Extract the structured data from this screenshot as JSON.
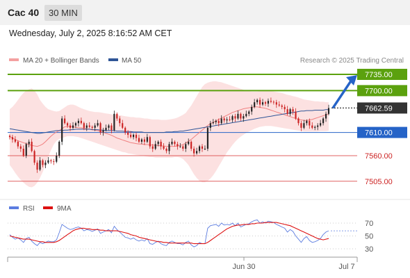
{
  "header": {
    "instrument": "Cac 40",
    "interval": "30 MIN"
  },
  "timestamp": "Wednesday, July 2, 2025 8:16:52 AM CET",
  "legend": {
    "ma20_bb": "MA 20 + Bollinger Bands",
    "ma50": "MA 50",
    "credit": "Research © 2025 Trading Central"
  },
  "colors": {
    "bb_fill": "#fcdcdc",
    "ma20": "#f08080",
    "ma50": "#2f5597",
    "up": "#222222",
    "down": "#cc2222",
    "target": "#5ba10e",
    "pivot": "#2563c7",
    "support": "#e06060",
    "price": "#333333",
    "rsi": "#5b7ce0",
    "rsi_ma": "#dd1111"
  },
  "chart_data": [
    {
      "type": "candlestick",
      "title": "Cac 40 30 MIN",
      "y_range": [
        7480,
        7760
      ],
      "levels": [
        {
          "name": "target2",
          "value": 7735.0,
          "label": "7735.00",
          "kind": "target"
        },
        {
          "name": "target1",
          "value": 7700.0,
          "label": "7700.00",
          "kind": "target"
        },
        {
          "name": "last",
          "value": 7662.59,
          "label": "7662.59",
          "kind": "price"
        },
        {
          "name": "pivot",
          "value": 7610.0,
          "label": "7610.00",
          "kind": "pivot"
        },
        {
          "name": "support1",
          "value": 7560.0,
          "label": "7560.00",
          "kind": "support"
        },
        {
          "name": "support2",
          "value": 7505.0,
          "label": "7505.00",
          "kind": "support"
        }
      ],
      "closes": [
        7600,
        7595,
        7590,
        7580,
        7575,
        7560,
        7585,
        7590,
        7570,
        7545,
        7530,
        7550,
        7540,
        7545,
        7550,
        7548,
        7547,
        7560,
        7590,
        7640,
        7630,
        7625,
        7620,
        7625,
        7630,
        7635,
        7630,
        7620,
        7625,
        7622,
        7620,
        7625,
        7630,
        7610,
        7615,
        7620,
        7625,
        7615,
        7650,
        7640,
        7630,
        7620,
        7610,
        7605,
        7600,
        7605,
        7598,
        7590,
        7595,
        7590,
        7600,
        7580,
        7575,
        7585,
        7590,
        7580,
        7575,
        7570,
        7585,
        7590,
        7585,
        7580,
        7580,
        7575,
        7585,
        7590,
        7575,
        7565,
        7570,
        7580,
        7575,
        7575,
        7620,
        7630,
        7632,
        7635,
        7630,
        7640,
        7636,
        7638,
        7637,
        7645,
        7640,
        7650,
        7640,
        7645,
        7650,
        7655,
        7665,
        7675,
        7680,
        7670,
        7675,
        7672,
        7678,
        7676,
        7675,
        7670,
        7668,
        7665,
        7660,
        7650,
        7660,
        7655,
        7640,
        7630,
        7620,
        7630,
        7635,
        7625,
        7620,
        7622,
        7625,
        7630,
        7640,
        7650,
        7662.59
      ],
      "ma20": [
        7601,
        7598,
        7595,
        7592,
        7590,
        7588,
        7586,
        7584,
        7582,
        7581,
        7580,
        7582,
        7585,
        7590,
        7596,
        7602,
        7607,
        7611,
        7614,
        7618,
        7622,
        7623,
        7623,
        7622,
        7621,
        7620,
        7620,
        7619,
        7618,
        7617,
        7616,
        7615,
        7614,
        7612,
        7610,
        7608,
        7606,
        7604,
        7601,
        7598,
        7596,
        7594,
        7592,
        7590,
        7588,
        7587,
        7586,
        7585,
        7585,
        7584,
        7584,
        7583,
        7583,
        7582,
        7582,
        7581,
        7581,
        7580,
        7580,
        7580,
        7580,
        7581,
        7582,
        7584,
        7587,
        7591,
        7595,
        7600,
        7605,
        7610,
        7615,
        7620,
        7625,
        7629,
        7632,
        7635,
        7638,
        7641,
        7644,
        7647,
        7650,
        7653,
        7655,
        7657,
        7659,
        7661,
        7662,
        7663,
        7664,
        7665,
        7665,
        7664,
        7663,
        7662,
        7660,
        7658,
        7656,
        7654,
        7652,
        7650,
        7648,
        7646,
        7644,
        7642,
        7640,
        7638,
        7637,
        7636,
        7636,
        7637,
        7638,
        7640,
        7642,
        7644,
        7646,
        7648,
        7650
      ],
      "ma50": [
        7618,
        7617,
        7616,
        7615,
        7614,
        7613,
        7612,
        7611,
        7610,
        7609,
        7608,
        7608,
        7609,
        7610,
        7611,
        7612,
        7613,
        7614,
        7614,
        7614,
        7615,
        7615,
        7616,
        7616,
        7617,
        7617,
        7617,
        7617,
        7617,
        7617,
        7616,
        7616,
        7616,
        7615,
        7615,
        7614,
        7614,
        7614,
        7614,
        7613,
        7613,
        7613,
        7612,
        7612,
        7612,
        7611,
        7611,
        7611,
        7611,
        7610,
        7610,
        7610,
        7610,
        7610,
        7610,
        7610,
        7610,
        7611,
        7611,
        7611,
        7612,
        7612,
        7613,
        7613,
        7614,
        7615,
        7616,
        7617,
        7618,
        7619,
        7620,
        7621,
        7622,
        7623,
        7624,
        7625,
        7626,
        7627,
        7628,
        7629,
        7630,
        7631,
        7632,
        7633,
        7634,
        7635,
        7636,
        7637,
        7638,
        7639,
        7640,
        7641,
        7642,
        7643,
        7644,
        7645,
        7646,
        7647,
        7648,
        7649,
        7650,
        7651,
        7652,
        7653,
        7654,
        7655,
        7656,
        7656,
        7657,
        7657,
        7657,
        7658,
        7658,
        7658,
        7658,
        7659,
        7659
      ],
      "bb_upper": [
        7660,
        7665,
        7672,
        7680,
        7688,
        7695,
        7700,
        7703,
        7705,
        7700,
        7692,
        7680,
        7672,
        7665,
        7660,
        7658,
        7656,
        7655,
        7656,
        7660,
        7664,
        7668,
        7670,
        7670,
        7668,
        7665,
        7662,
        7660,
        7658,
        7656,
        7655,
        7654,
        7654,
        7653,
        7652,
        7651,
        7650,
        7649,
        7648,
        7648,
        7647,
        7646,
        7645,
        7644,
        7643,
        7643,
        7642,
        7642,
        7641,
        7640,
        7640,
        7639,
        7638,
        7638,
        7638,
        7637,
        7637,
        7637,
        7638,
        7639,
        7640,
        7642,
        7645,
        7648,
        7652,
        7660,
        7668,
        7678,
        7688,
        7698,
        7708,
        7714,
        7717,
        7719,
        7720,
        7720,
        7719,
        7718,
        7716,
        7714,
        7712,
        7710,
        7708,
        7706,
        7704,
        7702,
        7700,
        7699,
        7698,
        7698,
        7698,
        7699,
        7700,
        7700,
        7700,
        7699,
        7698,
        7697,
        7696,
        7695,
        7693,
        7691,
        7690,
        7688,
        7687,
        7685,
        7683,
        7681,
        7680,
        7679,
        7678,
        7677,
        7677,
        7676,
        7676,
        7675,
        7675
      ],
      "bb_lower": [
        7540,
        7532,
        7523,
        7515,
        7508,
        7502,
        7497,
        7493,
        7492,
        7495,
        7502,
        7512,
        7525,
        7540,
        7558,
        7572,
        7584,
        7592,
        7596,
        7598,
        7600,
        7602,
        7602,
        7602,
        7601,
        7600,
        7598,
        7596,
        7594,
        7592,
        7590,
        7588,
        7586,
        7584,
        7582,
        7580,
        7578,
        7576,
        7574,
        7572,
        7570,
        7568,
        7567,
        7565,
        7564,
        7563,
        7562,
        7561,
        7560,
        7559,
        7558,
        7557,
        7557,
        7556,
        7556,
        7556,
        7556,
        7556,
        7556,
        7556,
        7557,
        7557,
        7556,
        7553,
        7547,
        7540,
        7530,
        7520,
        7512,
        7506,
        7503,
        7503,
        7506,
        7511,
        7518,
        7527,
        7537,
        7547,
        7557,
        7567,
        7575,
        7583,
        7590,
        7596,
        7601,
        7605,
        7609,
        7612,
        7615,
        7618,
        7620,
        7622,
        7623,
        7624,
        7624,
        7624,
        7623,
        7622,
        7621,
        7620,
        7619,
        7618,
        7617,
        7616,
        7615,
        7614,
        7613,
        7612,
        7612,
        7612,
        7612,
        7612,
        7612,
        7613,
        7613,
        7613,
        7614
      ],
      "x_labels": [
        "Jun 30",
        "Jul 7"
      ]
    },
    {
      "type": "line",
      "name": "RSI",
      "series": [
        {
          "name": "RSI"
        },
        {
          "name": "9MA"
        }
      ],
      "y_ticks": [
        70,
        50,
        30
      ],
      "y_range": [
        20,
        80
      ],
      "rsi": [
        52,
        48,
        45,
        47,
        44,
        40,
        46,
        48,
        42,
        38,
        35,
        40,
        38,
        40,
        42,
        41,
        41,
        44,
        55,
        68,
        65,
        62,
        60,
        61,
        63,
        64,
        62,
        58,
        60,
        59,
        57,
        59,
        61,
        54,
        56,
        58,
        60,
        55,
        65,
        60,
        56,
        52,
        48,
        47,
        45,
        47,
        44,
        42,
        44,
        42,
        46,
        38,
        37,
        40,
        42,
        38,
        36,
        35,
        40,
        42,
        40,
        38,
        38,
        36,
        40,
        42,
        36,
        33,
        35,
        40,
        38,
        38,
        62,
        66,
        67,
        68,
        65,
        70,
        67,
        68,
        67,
        70,
        66,
        70,
        64,
        66,
        68,
        69,
        72,
        74,
        75,
        70,
        72,
        70,
        73,
        72,
        71,
        68,
        66,
        64,
        62,
        56,
        60,
        57,
        50,
        45,
        40,
        46,
        49,
        43,
        40,
        41,
        43,
        46,
        52,
        56,
        58
      ],
      "rsi_ma": [
        50,
        49,
        48,
        47,
        46,
        45,
        45,
        45,
        44,
        43,
        42,
        41,
        41,
        40,
        40,
        40,
        40,
        41,
        43,
        46,
        49,
        52,
        55,
        58,
        60,
        61,
        62,
        62,
        61,
        61,
        60,
        60,
        60,
        59,
        59,
        58,
        58,
        58,
        58,
        58,
        57,
        56,
        55,
        54,
        52,
        51,
        50,
        48,
        47,
        46,
        45,
        44,
        43,
        42,
        41,
        41,
        40,
        40,
        39,
        39,
        39,
        39,
        39,
        39,
        39,
        39,
        39,
        38,
        38,
        38,
        38,
        38,
        40,
        43,
        46,
        49,
        52,
        55,
        58,
        61,
        63,
        65,
        66,
        67,
        67,
        68,
        68,
        68,
        69,
        69,
        70,
        70,
        70,
        71,
        71,
        71,
        71,
        71,
        70,
        69,
        68,
        67,
        66,
        64,
        62,
        60,
        58,
        56,
        54,
        52,
        50,
        48,
        46,
        45,
        44,
        45,
        46
      ]
    }
  ]
}
